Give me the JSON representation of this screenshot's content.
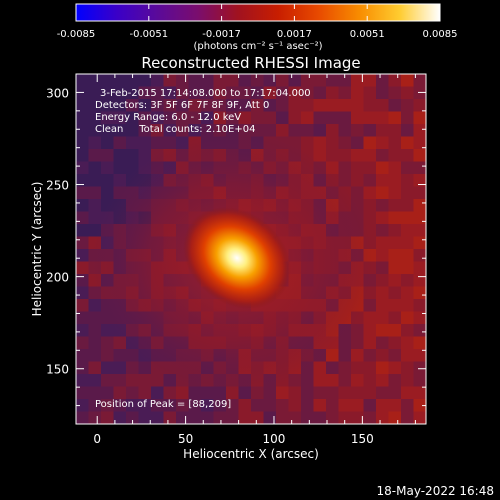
{
  "colorbar": {
    "tick_labels": [
      "-0.0085",
      "-0.0051",
      "-0.0017",
      "0.0017",
      "0.0051",
      "0.0085"
    ],
    "min": -0.0085,
    "max": 0.0085,
    "unit_text": "(photons cm⁻² s⁻¹ asec⁻²)",
    "gradient": [
      "#0000ff",
      "#3a00c8",
      "#5a0a9a",
      "#7a0d6e",
      "#a01220",
      "#c81e00",
      "#e84a00",
      "#f88c00",
      "#ffcc30",
      "#ffffff"
    ]
  },
  "title": "Reconstructed RHESSI Image",
  "info": {
    "time_range": "3-Feb-2015 17:14:08.000 to 17:17:04.000",
    "detectors": "Detectors: 3F 5F 6F 7F 8F 9F, Att 0",
    "energy": "Energy Range: 6.0 - 12.0 keV",
    "clean": "Clean     Total counts: 2.10E+04",
    "peak": "Position of Peak = [88,209]"
  },
  "footer": {
    "date": "18-May-2022 16:48"
  },
  "chart_data": {
    "type": "heatmap",
    "title": "Reconstructed RHESSI Image",
    "xlabel": "Heliocentric X (arcsec)",
    "ylabel": "Heliocentric Y (arcsec)",
    "xlim": [
      -12,
      186
    ],
    "ylim": [
      120,
      310
    ],
    "x_ticks": [
      0,
      50,
      100,
      150
    ],
    "y_ticks": [
      150,
      200,
      250,
      300
    ],
    "peak": {
      "x": 88,
      "y": 209
    },
    "colors": {
      "background": "#000000",
      "axis": "#ffffff"
    }
  }
}
